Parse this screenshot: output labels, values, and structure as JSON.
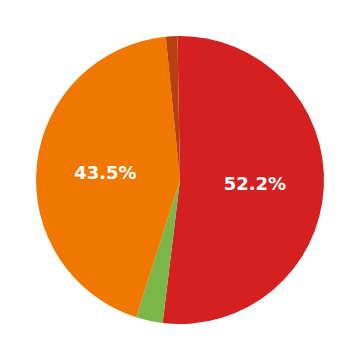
{
  "chart_data": {
    "type": "pie",
    "values": [
      52.2,
      3.0,
      43.5,
      1.3
    ],
    "value_labels": [
      "52.2%",
      null,
      "43.5%",
      null
    ],
    "colors": [
      "#d42020",
      "#7ab648",
      "#f07800",
      "#b84010"
    ],
    "data_labels": true
  }
}
